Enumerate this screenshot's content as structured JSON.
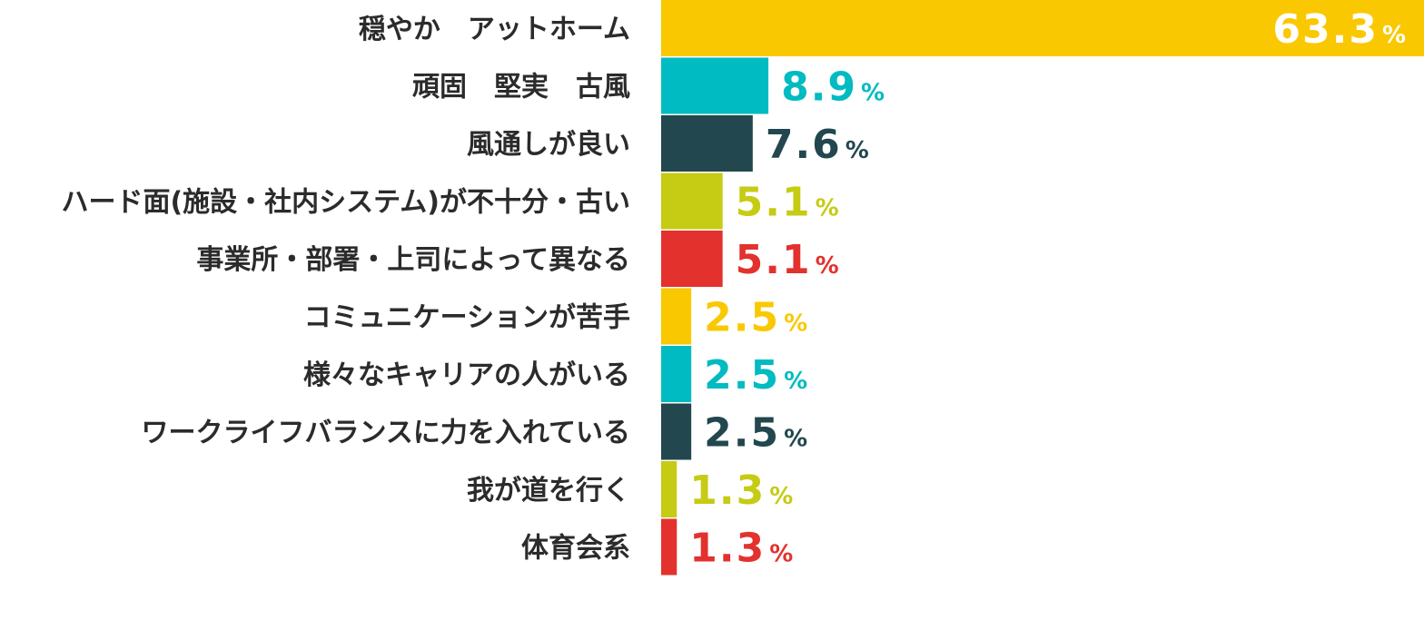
{
  "colors": {
    "yellow": "#FAC800",
    "teal": "#00BBC1",
    "dark_teal": "#22474E",
    "olive": "#C6CB14",
    "red": "#E3312D",
    "label_text": "#2b2b2b",
    "inside_value_text": "#ffffff"
  },
  "chart_data": {
    "type": "bar",
    "orientation": "horizontal",
    "title": "",
    "xlabel": "",
    "ylabel": "",
    "unit": "%",
    "xlim": [
      0,
      63.3
    ],
    "grid": false,
    "categories": [
      "穏やか　アットホーム",
      "頑固　堅実　古風",
      "風通しが良い",
      "ハード面(施設・社内システム)が不十分・古い",
      "事業所・部署・上司によって異なる",
      "コミュニケーションが苦手",
      "様々なキャリアの人がいる",
      "ワークライフバランスに力を入れている",
      "我が道を行く",
      "体育会系"
    ],
    "values": [
      63.3,
      8.9,
      7.6,
      5.1,
      5.1,
      2.5,
      2.5,
      2.5,
      1.3,
      1.3
    ],
    "value_labels": [
      "63.3",
      "8.9",
      "7.6",
      "5.1",
      "5.1",
      "2.5",
      "2.5",
      "2.5",
      "1.3",
      "1.3"
    ],
    "bar_colors": [
      "yellow",
      "teal",
      "dark_teal",
      "olive",
      "red",
      "yellow",
      "teal",
      "dark_teal",
      "olive",
      "red"
    ]
  }
}
